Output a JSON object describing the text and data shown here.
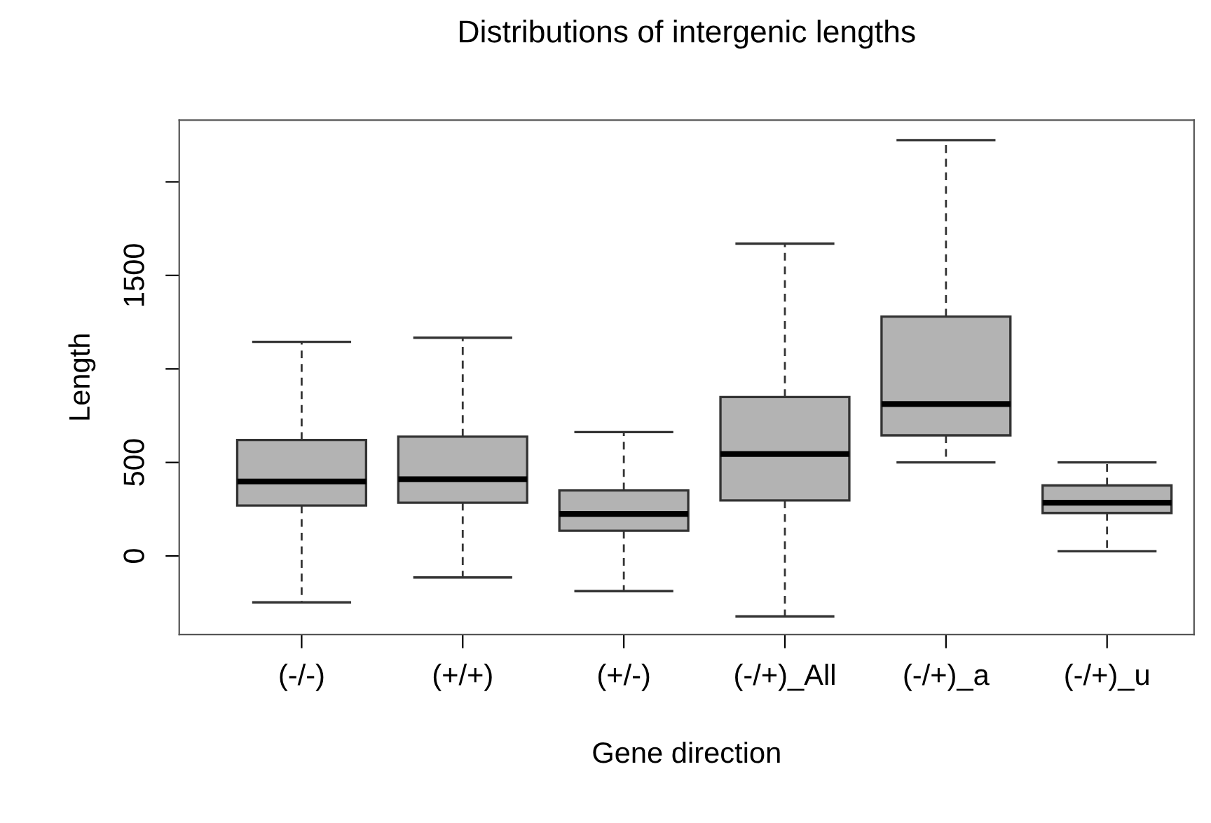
{
  "chart_data": {
    "type": "box",
    "title": "Distributions of intergenic lengths",
    "xlabel": "Gene direction",
    "ylabel": "Length",
    "categories": [
      "(-/-)",
      "(+/+)",
      "(+/-)",
      "(-/+)_All",
      "(-/+)_a",
      "(-/+)_u"
    ],
    "color": "#b3b3b3",
    "boxes": [
      {
        "low": -248,
        "q1": 270,
        "median": 398,
        "q3": 620,
        "high": 1145
      },
      {
        "low": -115,
        "q1": 285,
        "median": 410,
        "q3": 638,
        "high": 1167
      },
      {
        "low": -188,
        "q1": 135,
        "median": 225,
        "q3": 350,
        "high": 662
      },
      {
        "low": -323,
        "q1": 297,
        "median": 545,
        "q3": 850,
        "high": 1670
      },
      {
        "low": 500,
        "q1": 645,
        "median": 812,
        "q3": 1280,
        "high": 2223
      },
      {
        "low": 25,
        "q1": 230,
        "median": 285,
        "q3": 377,
        "high": 500
      }
    ],
    "ylim": [
      -420,
      2330
    ],
    "yticks": [
      0,
      500,
      {
        "value": 1000,
        "label": null
      },
      1500,
      {
        "value": 2000,
        "label": null
      }
    ],
    "grid": false,
    "legend": false
  }
}
